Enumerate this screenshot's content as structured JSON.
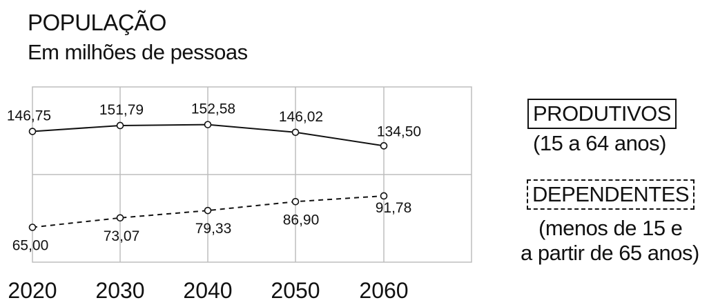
{
  "chart_data": {
    "type": "line",
    "title": "POPULAÇÃO",
    "subtitle": "Em milhões de pessoas",
    "categories": [
      "2020",
      "2030",
      "2040",
      "2050",
      "2060"
    ],
    "series": [
      {
        "name": "PRODUTIVOS",
        "note": "(15 a 64 anos)",
        "values": [
          146.75,
          151.79,
          152.58,
          146.02,
          134.5
        ],
        "labels": [
          "146,75",
          "151,79",
          "152,58",
          "146,02",
          "134,50"
        ],
        "style": "solid"
      },
      {
        "name": "DEPENDENTES",
        "note_lines": [
          "(menos de 15 e",
          "a partir de 65 anos)"
        ],
        "values": [
          65.0,
          73.07,
          79.33,
          86.9,
          91.78
        ],
        "labels": [
          "65,00",
          "73,07",
          "79,33",
          "86,90",
          "91,78"
        ],
        "style": "dashed"
      }
    ],
    "grid": true,
    "legend_position": "right",
    "colors": {
      "line": "#111111",
      "grid": "#bdbdbd",
      "marker_fill": "#ffffff"
    }
  }
}
